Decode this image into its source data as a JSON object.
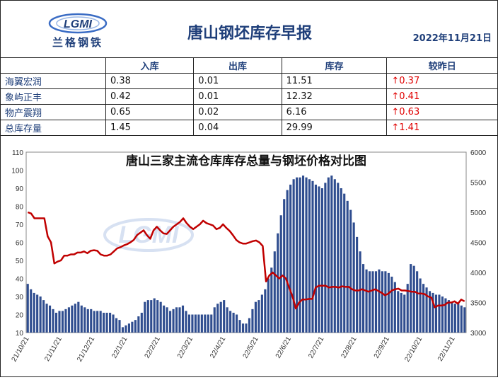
{
  "header": {
    "logo_text": "LGMI",
    "logo_subtitle": "兰格钢铁",
    "title": "唐山钢坯库存早报",
    "date": "2022年11月21日"
  },
  "table": {
    "columns": [
      "",
      "入库",
      "出库",
      "库存",
      "较昨日"
    ],
    "rows": [
      {
        "name": "海翼宏润",
        "in": "0.38",
        "out": "0.01",
        "stock": "11.51",
        "change": "↑0.37"
      },
      {
        "name": "象屿正丰",
        "in": "0.42",
        "out": "0.01",
        "stock": "12.32",
        "change": "↑0.41"
      },
      {
        "name": "物产震翔",
        "in": "0.65",
        "out": "0.02",
        "stock": "6.16",
        "change": "↑0.63"
      },
      {
        "name": "总库存量",
        "in": "1.45",
        "out": "0.04",
        "stock": "29.99",
        "change": "↑1.41"
      }
    ]
  },
  "colors": {
    "bar": "#2f4d8f",
    "line": "#c00000",
    "accent": "#1f3f7a",
    "up": "#e00000"
  },
  "chart_data": {
    "type": "bar",
    "title": "唐山三家主流仓库库存总量与钢坯价格对比图",
    "watermark": "LGMI",
    "ylim_left": [
      10,
      110
    ],
    "yticks_left": [
      10,
      20,
      30,
      40,
      50,
      60,
      70,
      80,
      90,
      100,
      110
    ],
    "ylim_right": [
      3000,
      6000
    ],
    "yticks_right": [
      3000,
      3500,
      4000,
      4500,
      5000,
      5500,
      6000
    ],
    "x_tick_labels": [
      "21/10/21",
      "21/11/21",
      "21/12/21",
      "22/1/21",
      "22/2/21",
      "22/3/21",
      "22/4/21",
      "22/5/21",
      "22/6/21",
      "22/7/21",
      "22/8/21",
      "22/9/21",
      "22/10/21",
      "22/11/21"
    ],
    "series": [
      {
        "kind": "bar",
        "axis": "left",
        "values": [
          37,
          34,
          32,
          31,
          30,
          28,
          26,
          25,
          23,
          21,
          22,
          22,
          23,
          24,
          25,
          26,
          27,
          25,
          24,
          23,
          23,
          22,
          22,
          22,
          21,
          21,
          21,
          20,
          18,
          17,
          13,
          14,
          15,
          16,
          17,
          19,
          21,
          27,
          28,
          28,
          29,
          28,
          27,
          25,
          24,
          22,
          23,
          24,
          24,
          25,
          22,
          20,
          20,
          20,
          20,
          20,
          20,
          20,
          20,
          24,
          26,
          27,
          28,
          24,
          22,
          21,
          20,
          17,
          15,
          15,
          18,
          23,
          27,
          28,
          31,
          34,
          40,
          46,
          55,
          65,
          75,
          84,
          89,
          92,
          95,
          96,
          96,
          97,
          96,
          95,
          94,
          92,
          91,
          90,
          93,
          96,
          97,
          95,
          93,
          90,
          87,
          83,
          78,
          71,
          63,
          55,
          48,
          45,
          44,
          44,
          44,
          45,
          44,
          44,
          43,
          41,
          38,
          33,
          32,
          31,
          37,
          48,
          47,
          44,
          40,
          37,
          35,
          33,
          32,
          31,
          31,
          30,
          29,
          28,
          27,
          26,
          26,
          25,
          24
        ]
      },
      {
        "kind": "line",
        "axis": "right",
        "values": [
          5000,
          4980,
          4900,
          4900,
          4900,
          4900,
          4600,
          4500,
          4150,
          4180,
          4200,
          4280,
          4280,
          4300,
          4300,
          4330,
          4330,
          4350,
          4320,
          4360,
          4370,
          4360,
          4300,
          4280,
          4280,
          4300,
          4350,
          4400,
          4420,
          4450,
          4470,
          4500,
          4540,
          4620,
          4660,
          4700,
          4620,
          4560,
          4700,
          4760,
          4700,
          4650,
          4640,
          4700,
          4760,
          4800,
          4840,
          4900,
          4820,
          4760,
          4720,
          4760,
          4800,
          4860,
          4820,
          4800,
          4780,
          4720,
          4740,
          4800,
          4740,
          4690,
          4620,
          4540,
          4500,
          4480,
          4480,
          4500,
          4520,
          4530,
          4500,
          4440,
          3850,
          3950,
          4000,
          3950,
          3900,
          3950,
          3900,
          3750,
          3600,
          3400,
          3500,
          3550,
          3550,
          3560,
          3560,
          3750,
          3780,
          3780,
          3780,
          3750,
          3760,
          3760,
          3750,
          3770,
          3760,
          3760,
          3720,
          3700,
          3700,
          3720,
          3700,
          3680,
          3700,
          3720,
          3690,
          3660,
          3620,
          3650,
          3700,
          3720,
          3730,
          3700,
          3700,
          3690,
          3680,
          3680,
          3650,
          3650,
          3640,
          3600,
          3580,
          3420,
          3450,
          3450,
          3460,
          3500,
          3500,
          3520,
          3480,
          3550,
          3520
        ]
      }
    ]
  }
}
